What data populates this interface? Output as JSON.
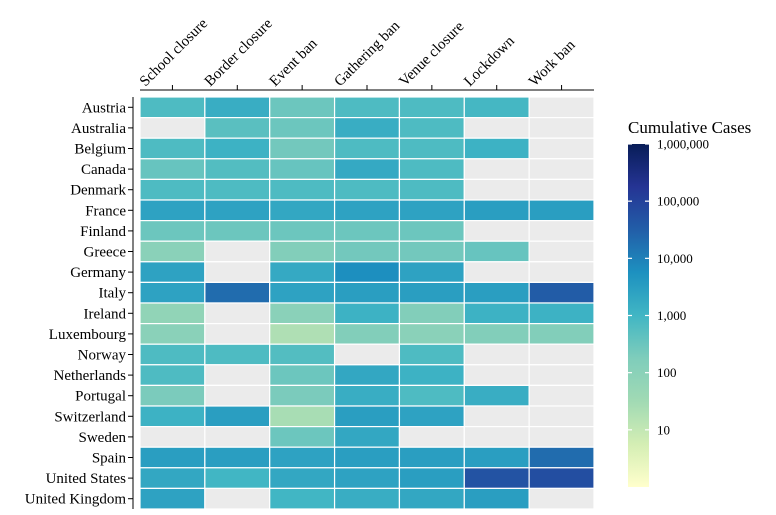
{
  "chart_data": {
    "type": "heatmap",
    "title": "",
    "columns": [
      "School closure",
      "Border closure",
      "Event ban",
      "Gathering ban",
      "Venue closure",
      "Lockdown",
      "Work ban"
    ],
    "rows": [
      "Austria",
      "Australia",
      "Belgium",
      "Canada",
      "Denmark",
      "France",
      "Finland",
      "Greece",
      "Germany",
      "Italy",
      "Ireland",
      "Luxembourg",
      "Norway",
      "Netherlands",
      "Portugal",
      "Switzerland",
      "Sweden",
      "Spain",
      "United States",
      "United Kingdom"
    ],
    "values": [
      [
        700,
        1500,
        300,
        700,
        700,
        900,
        null
      ],
      [
        null,
        500,
        300,
        1500,
        700,
        null,
        null
      ],
      [
        700,
        1200,
        250,
        700,
        700,
        1200,
        null
      ],
      [
        350,
        600,
        350,
        1800,
        700,
        null,
        null
      ],
      [
        700,
        700,
        700,
        700,
        700,
        null,
        null
      ],
      [
        2500,
        2500,
        2000,
        2500,
        2500,
        3000,
        3000
      ],
      [
        300,
        300,
        300,
        300,
        300,
        null,
        null
      ],
      [
        100,
        null,
        150,
        250,
        250,
        350,
        null
      ],
      [
        2500,
        null,
        1800,
        6000,
        2500,
        null,
        null
      ],
      [
        2500,
        20000,
        2500,
        3000,
        3000,
        3000,
        35000
      ],
      [
        70,
        null,
        100,
        1200,
        150,
        1200,
        1200
      ],
      [
        100,
        null,
        20,
        150,
        100,
        150,
        150
      ],
      [
        700,
        700,
        600,
        null,
        700,
        null,
        null
      ],
      [
        700,
        null,
        300,
        2000,
        1200,
        null,
        null
      ],
      [
        200,
        null,
        200,
        1500,
        700,
        1500,
        null
      ],
      [
        1200,
        3000,
        25,
        3000,
        2500,
        null,
        null
      ],
      [
        null,
        null,
        300,
        2000,
        null,
        null,
        null
      ],
      [
        3000,
        3000,
        2500,
        3000,
        3000,
        3000,
        20000
      ],
      [
        2000,
        1000,
        2000,
        2500,
        3000,
        50000,
        60000
      ],
      [
        2500,
        null,
        1000,
        1500,
        2000,
        3000,
        null
      ]
    ],
    "missing_color": "#ebebeb",
    "colorbar": {
      "title": "Cumulative Cases",
      "scale": "log10",
      "range": [
        1,
        1000000
      ],
      "tick_values": [
        10,
        100,
        1000,
        10000,
        100000,
        1000000
      ],
      "tick_labels": [
        "10",
        "100",
        "1,000",
        "10,000",
        "100,000",
        "1,000,000"
      ],
      "colors": [
        "#ffffcc",
        "#d4eeb4",
        "#a1dab4",
        "#7fcdbb",
        "#41b6c4",
        "#1d91c0",
        "#225ea8",
        "#253494",
        "#081d58"
      ]
    }
  }
}
